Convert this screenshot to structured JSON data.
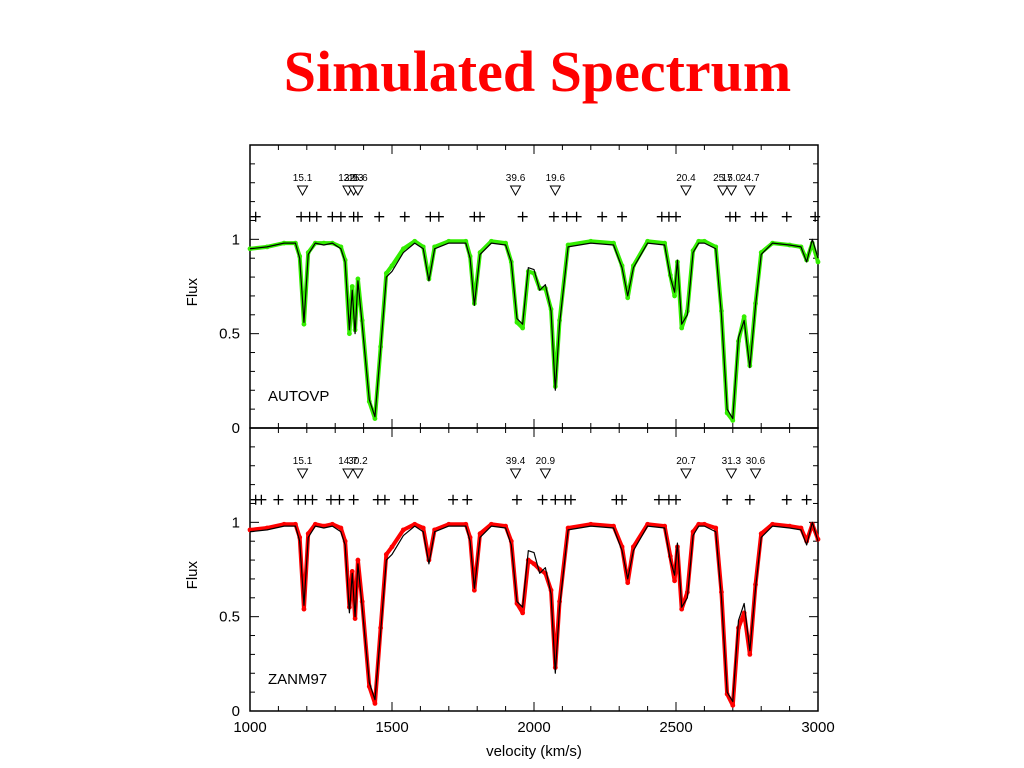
{
  "title": "Simulated Spectrum",
  "colors": {
    "title": "#ff0000",
    "observed": "#000000",
    "fit_top": "#33ee00",
    "fit_bottom": "#ff0000"
  },
  "chart_data": [
    {
      "type": "line",
      "panel_label": "AUTOVP",
      "ylabel": "Flux",
      "xlim": [
        1000,
        3000
      ],
      "ylim": [
        0,
        1.5
      ],
      "yticks": [
        "0",
        "0.5",
        "1"
      ],
      "markers": [
        {
          "x": 1185,
          "label": "15.1"
        },
        {
          "x": 1345,
          "label": "12.9"
        },
        {
          "x": 1365,
          "label": "32.3"
        },
        {
          "x": 1380,
          "label": "15.6"
        },
        {
          "x": 1935,
          "label": "39.6"
        },
        {
          "x": 2075,
          "label": "19.6"
        },
        {
          "x": 2535,
          "label": "20.4"
        },
        {
          "x": 2665,
          "label": "25.7"
        },
        {
          "x": 2695,
          "label": "15.0"
        },
        {
          "x": 2760,
          "label": "24.7"
        }
      ],
      "components_x": [
        1020,
        1180,
        1210,
        1235,
        1290,
        1320,
        1365,
        1380,
        1455,
        1545,
        1635,
        1665,
        1790,
        1810,
        1960,
        2070,
        2115,
        2150,
        2240,
        2310,
        2450,
        2475,
        2500,
        2690,
        2710,
        2780,
        2805,
        2890,
        2990
      ],
      "series": [
        {
          "name": "",
          "role": "observed",
          "x": [
            1000,
            1060,
            1120,
            1160,
            1175,
            1190,
            1205,
            1230,
            1260,
            1290,
            1320,
            1335,
            1350,
            1360,
            1370,
            1380,
            1395,
            1420,
            1440,
            1460,
            1480,
            1500,
            1540,
            1580,
            1610,
            1630,
            1650,
            1700,
            1760,
            1775,
            1790,
            1810,
            1850,
            1900,
            1920,
            1940,
            1960,
            1980,
            2000,
            2020,
            2040,
            2060,
            2075,
            2090,
            2120,
            2200,
            2280,
            2310,
            2330,
            2350,
            2400,
            2460,
            2480,
            2495,
            2505,
            2520,
            2540,
            2560,
            2580,
            2600,
            2640,
            2660,
            2680,
            2700,
            2720,
            2740,
            2760,
            2780,
            2800,
            2840,
            2900,
            2940,
            2960,
            2980,
            3000
          ],
          "y": [
            0.95,
            0.96,
            0.98,
            0.98,
            0.9,
            0.56,
            0.92,
            0.98,
            0.97,
            0.98,
            0.95,
            0.88,
            0.52,
            0.73,
            0.5,
            0.78,
            0.55,
            0.15,
            0.06,
            0.42,
            0.8,
            0.83,
            0.93,
            0.98,
            0.95,
            0.78,
            0.95,
            0.98,
            0.98,
            0.9,
            0.65,
            0.92,
            0.98,
            0.97,
            0.88,
            0.58,
            0.55,
            0.85,
            0.84,
            0.73,
            0.76,
            0.62,
            0.2,
            0.55,
            0.96,
            0.98,
            0.97,
            0.85,
            0.7,
            0.85,
            0.98,
            0.97,
            0.8,
            0.72,
            0.89,
            0.55,
            0.6,
            0.93,
            0.98,
            0.98,
            0.95,
            0.6,
            0.1,
            0.05,
            0.48,
            0.57,
            0.32,
            0.65,
            0.92,
            0.98,
            0.97,
            0.96,
            0.88,
            1.0,
            0.9
          ]
        },
        {
          "name": "",
          "role": "fit",
          "x": [
            1000,
            1060,
            1120,
            1160,
            1175,
            1190,
            1205,
            1230,
            1260,
            1290,
            1320,
            1335,
            1350,
            1360,
            1370,
            1380,
            1395,
            1420,
            1440,
            1460,
            1480,
            1500,
            1540,
            1580,
            1610,
            1630,
            1650,
            1700,
            1760,
            1775,
            1790,
            1810,
            1850,
            1900,
            1920,
            1940,
            1960,
            1980,
            2000,
            2020,
            2040,
            2060,
            2075,
            2090,
            2120,
            2200,
            2280,
            2310,
            2330,
            2350,
            2400,
            2460,
            2480,
            2495,
            2505,
            2520,
            2540,
            2560,
            2580,
            2600,
            2640,
            2660,
            2680,
            2700,
            2720,
            2740,
            2760,
            2780,
            2800,
            2840,
            2900,
            2940,
            2960,
            2980,
            3000
          ],
          "y": [
            0.95,
            0.96,
            0.98,
            0.98,
            0.91,
            0.55,
            0.93,
            0.98,
            0.98,
            0.98,
            0.96,
            0.89,
            0.5,
            0.75,
            0.52,
            0.79,
            0.57,
            0.14,
            0.05,
            0.43,
            0.82,
            0.86,
            0.95,
            0.99,
            0.96,
            0.79,
            0.96,
            0.99,
            0.99,
            0.91,
            0.66,
            0.93,
            0.99,
            0.98,
            0.88,
            0.56,
            0.53,
            0.83,
            0.82,
            0.74,
            0.74,
            0.63,
            0.22,
            0.57,
            0.97,
            0.99,
            0.98,
            0.86,
            0.69,
            0.86,
            0.99,
            0.98,
            0.81,
            0.7,
            0.88,
            0.53,
            0.62,
            0.94,
            0.99,
            0.99,
            0.96,
            0.62,
            0.08,
            0.04,
            0.46,
            0.59,
            0.33,
            0.66,
            0.93,
            0.98,
            0.97,
            0.96,
            0.89,
            0.98,
            0.88
          ]
        }
      ]
    },
    {
      "type": "line",
      "panel_label": "ZANM97",
      "ylabel": "Flux",
      "xlabel": "velocity (km/s)",
      "xlim": [
        1000,
        3000
      ],
      "ylim": [
        0,
        1.5
      ],
      "xticks": [
        "1000",
        "1500",
        "2000",
        "2500",
        "3000"
      ],
      "yticks": [
        "0",
        "0.5",
        "1"
      ],
      "markers": [
        {
          "x": 1185,
          "label": "15.1"
        },
        {
          "x": 1345,
          "label": "14.7"
        },
        {
          "x": 1380,
          "label": "30.2"
        },
        {
          "x": 1935,
          "label": "39.4"
        },
        {
          "x": 2040,
          "label": "20.9"
        },
        {
          "x": 2535,
          "label": "20.7"
        },
        {
          "x": 2695,
          "label": "31.3"
        },
        {
          "x": 2780,
          "label": "30.6"
        }
      ],
      "components_x": [
        1020,
        1040,
        1100,
        1170,
        1195,
        1220,
        1285,
        1315,
        1365,
        1450,
        1475,
        1545,
        1575,
        1715,
        1765,
        1940,
        2030,
        2075,
        2110,
        2130,
        2290,
        2310,
        2440,
        2475,
        2500,
        2680,
        2760,
        2890,
        2960
      ],
      "series": [
        {
          "name": "",
          "role": "observed",
          "x": [
            1000,
            1060,
            1120,
            1160,
            1175,
            1190,
            1205,
            1230,
            1260,
            1290,
            1320,
            1335,
            1350,
            1360,
            1370,
            1380,
            1395,
            1420,
            1440,
            1460,
            1480,
            1500,
            1540,
            1580,
            1610,
            1630,
            1650,
            1700,
            1760,
            1775,
            1790,
            1810,
            1850,
            1900,
            1920,
            1940,
            1960,
            1980,
            2000,
            2020,
            2040,
            2060,
            2075,
            2090,
            2120,
            2200,
            2280,
            2310,
            2330,
            2350,
            2400,
            2460,
            2480,
            2495,
            2505,
            2520,
            2540,
            2560,
            2580,
            2600,
            2640,
            2660,
            2680,
            2700,
            2720,
            2740,
            2760,
            2780,
            2800,
            2840,
            2900,
            2940,
            2960,
            2980,
            3000
          ],
          "y": [
            0.95,
            0.96,
            0.98,
            0.98,
            0.9,
            0.56,
            0.92,
            0.98,
            0.97,
            0.98,
            0.95,
            0.88,
            0.52,
            0.73,
            0.5,
            0.78,
            0.55,
            0.15,
            0.06,
            0.42,
            0.8,
            0.83,
            0.93,
            0.98,
            0.95,
            0.78,
            0.95,
            0.98,
            0.98,
            0.9,
            0.65,
            0.92,
            0.98,
            0.97,
            0.88,
            0.58,
            0.55,
            0.85,
            0.84,
            0.73,
            0.76,
            0.62,
            0.2,
            0.55,
            0.96,
            0.98,
            0.97,
            0.85,
            0.7,
            0.85,
            0.98,
            0.97,
            0.8,
            0.72,
            0.89,
            0.55,
            0.6,
            0.93,
            0.98,
            0.98,
            0.95,
            0.6,
            0.1,
            0.05,
            0.48,
            0.57,
            0.32,
            0.65,
            0.92,
            0.98,
            0.97,
            0.96,
            0.88,
            1.0,
            0.9
          ]
        },
        {
          "name": "",
          "role": "fit",
          "x": [
            1000,
            1060,
            1120,
            1160,
            1175,
            1190,
            1205,
            1230,
            1260,
            1290,
            1320,
            1335,
            1350,
            1360,
            1370,
            1380,
            1395,
            1420,
            1440,
            1460,
            1480,
            1500,
            1540,
            1580,
            1610,
            1630,
            1650,
            1700,
            1760,
            1775,
            1790,
            1810,
            1850,
            1900,
            1920,
            1940,
            1960,
            1980,
            2000,
            2020,
            2040,
            2060,
            2075,
            2090,
            2120,
            2200,
            2280,
            2310,
            2330,
            2350,
            2400,
            2460,
            2480,
            2495,
            2505,
            2520,
            2540,
            2560,
            2580,
            2600,
            2640,
            2660,
            2680,
            2700,
            2720,
            2740,
            2760,
            2780,
            2800,
            2840,
            2900,
            2940,
            2960,
            2980,
            3000
          ],
          "y": [
            0.96,
            0.97,
            0.99,
            0.99,
            0.92,
            0.54,
            0.94,
            0.99,
            0.98,
            0.99,
            0.97,
            0.9,
            0.55,
            0.74,
            0.49,
            0.8,
            0.58,
            0.13,
            0.04,
            0.44,
            0.83,
            0.87,
            0.96,
            0.99,
            0.97,
            0.8,
            0.96,
            0.99,
            0.99,
            0.92,
            0.64,
            0.94,
            0.99,
            0.98,
            0.9,
            0.57,
            0.52,
            0.8,
            0.78,
            0.75,
            0.73,
            0.64,
            0.23,
            0.58,
            0.97,
            0.99,
            0.98,
            0.87,
            0.68,
            0.87,
            0.99,
            0.98,
            0.82,
            0.69,
            0.87,
            0.54,
            0.63,
            0.95,
            0.99,
            0.99,
            0.97,
            0.63,
            0.09,
            0.03,
            0.44,
            0.52,
            0.3,
            0.67,
            0.94,
            0.99,
            0.98,
            0.97,
            0.9,
            0.99,
            0.91
          ]
        }
      ]
    }
  ]
}
